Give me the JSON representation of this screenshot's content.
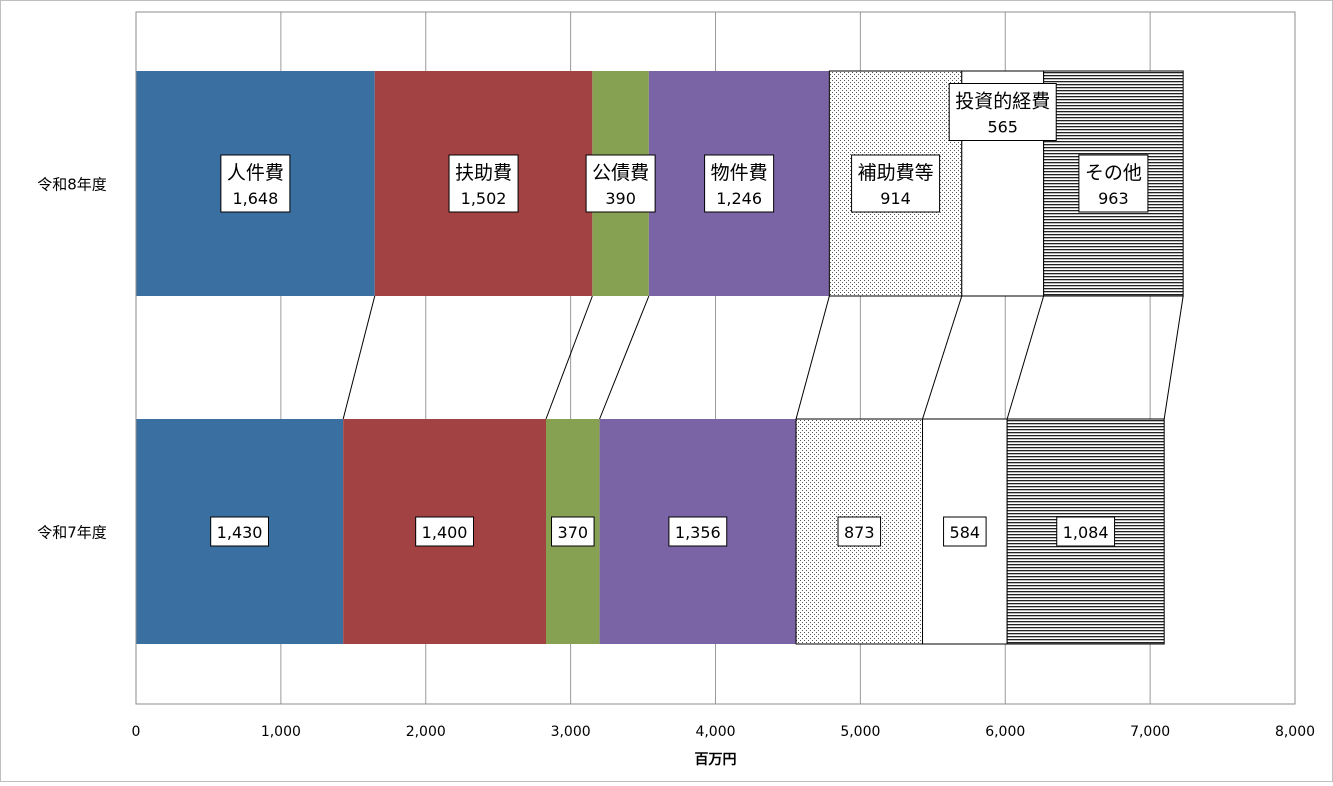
{
  "chart_data": {
    "type": "bar",
    "orientation": "horizontal",
    "stacked": true,
    "categories": [
      "令和8年度",
      "令和7年度"
    ],
    "xlabel": "百万円",
    "xlim": [
      0,
      8000
    ],
    "xticks": [
      0,
      1000,
      2000,
      3000,
      4000,
      5000,
      6000,
      7000,
      8000
    ],
    "xtick_labels": [
      "0",
      "1,000",
      "2,000",
      "3,000",
      "4,000",
      "5,000",
      "6,000",
      "7,000",
      "8,000"
    ],
    "grid": "vertical",
    "series": [
      {
        "name": "人件費",
        "values": [
          1648,
          1430
        ],
        "value_labels": [
          "1,648",
          "1,430"
        ],
        "color": "#3A6FA1",
        "pattern": "solid"
      },
      {
        "name": "扶助費",
        "values": [
          1502,
          1400
        ],
        "value_labels": [
          "1,502",
          "1,400"
        ],
        "color": "#A34243",
        "pattern": "solid"
      },
      {
        "name": "公債費",
        "values": [
          390,
          370
        ],
        "value_labels": [
          "390",
          "370"
        ],
        "color": "#86A152",
        "pattern": "solid"
      },
      {
        "name": "物件費",
        "values": [
          1246,
          1356
        ],
        "value_labels": [
          "1,246",
          "1,356"
        ],
        "color": "#7B64A6",
        "pattern": "solid"
      },
      {
        "name": "補助費等",
        "values": [
          914,
          873
        ],
        "value_labels": [
          "914",
          "873"
        ],
        "color": "#ffffff",
        "pattern": "dots"
      },
      {
        "name": "投資的経費",
        "values": [
          565,
          584
        ],
        "value_labels": [
          "565",
          "584"
        ],
        "color": "#ffffff",
        "pattern": "none"
      },
      {
        "name": "その他",
        "values": [
          963,
          1084
        ],
        "value_labels": [
          "963",
          "1,084"
        ],
        "color": "#ffffff",
        "pattern": "hlines"
      }
    ]
  }
}
